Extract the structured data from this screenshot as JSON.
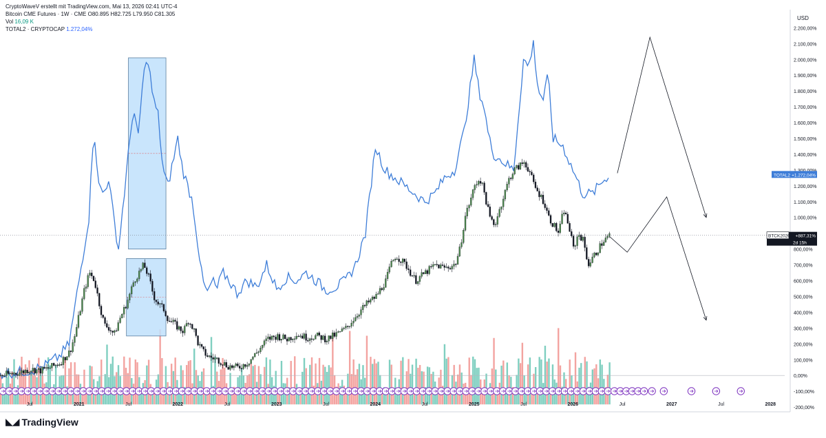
{
  "header": {
    "publisher": "CryptoWaveV erstellt mit TradingView.com, Mai 13, 2026 02:41 UTC-4",
    "symbol": "Bitcoin CME Futures · 1W · CME",
    "ohlc": "O80.895  H82.725  L79.950  C81.305",
    "vol_label": "Vol",
    "vol_value": "16,09 K",
    "compare_label": "TOTAL2 · CRYPTOCAP",
    "compare_value": "1.272,04%"
  },
  "footer": {
    "brand": "TradingView"
  },
  "colors": {
    "total2": "#3d7dd8",
    "candle_up": "#4d8a4d",
    "candle_down": "#131722",
    "vol_up": "#7fcfc0",
    "vol_down": "#f3a3a0",
    "box_fill": "#bfe0fb",
    "box_stroke": "#5a7fa0"
  },
  "chart_data": {
    "type": "line",
    "y_axis_unit": "USD",
    "ylim": [
      -230,
      2280
    ],
    "y_ticks": [
      2200,
      2100,
      2000,
      1900,
      1800,
      1700,
      1600,
      1500,
      1400,
      1300,
      1200,
      1100,
      1000,
      800,
      700,
      600,
      500,
      400,
      300,
      200,
      100,
      0,
      -100,
      -200
    ],
    "y_tick_labels": [
      "2.200,00%",
      "2.100,00%",
      "2.000,00%",
      "1.900,00%",
      "1.800,00%",
      "1.700,00%",
      "1.600,00%",
      "1.500,00%",
      "1.400,00%",
      "1.300,00%",
      "1.200,00%",
      "1.100,00%",
      "1.000,00%",
      "800,00%",
      "700,00%",
      "600,00%",
      "500,00%",
      "400,00%",
      "300,00%",
      "200,00%",
      "100,00%",
      "0,00%",
      "-100,00%",
      "-200,00%"
    ],
    "xlim": [
      2020.2,
      2028.2
    ],
    "x_ticks": [
      {
        "t": 2020.5,
        "label": "Jul"
      },
      {
        "t": 2021.0,
        "label": "2021"
      },
      {
        "t": 2021.5,
        "label": "Jul"
      },
      {
        "t": 2022.0,
        "label": "2022"
      },
      {
        "t": 2022.5,
        "label": "Jul"
      },
      {
        "t": 2023.0,
        "label": "2023"
      },
      {
        "t": 2023.5,
        "label": "Jul"
      },
      {
        "t": 2024.0,
        "label": "2024"
      },
      {
        "t": 2024.5,
        "label": "Jul"
      },
      {
        "t": 2025.0,
        "label": "2025"
      },
      {
        "t": 2025.5,
        "label": "Jul"
      },
      {
        "t": 2026.0,
        "label": "2026"
      },
      {
        "t": 2026.5,
        "label": "Jul"
      },
      {
        "t": 2027.0,
        "label": "2027"
      },
      {
        "t": 2027.5,
        "label": "Jul"
      },
      {
        "t": 2028.0,
        "label": "2028"
      }
    ],
    "series": [
      {
        "name": "TOTAL2 · CRYPTOCAP",
        "kind": "line",
        "x": [
          2020.2,
          2020.35,
          2020.5,
          2020.65,
          2020.8,
          2020.9,
          2021.0,
          2021.05,
          2021.1,
          2021.15,
          2021.2,
          2021.25,
          2021.3,
          2021.35,
          2021.4,
          2021.45,
          2021.5,
          2021.55,
          2021.6,
          2021.65,
          2021.7,
          2021.75,
          2021.8,
          2021.85,
          2021.9,
          2021.95,
          2022.0,
          2022.05,
          2022.1,
          2022.15,
          2022.2,
          2022.25,
          2022.3,
          2022.35,
          2022.4,
          2022.45,
          2022.5,
          2022.6,
          2022.7,
          2022.8,
          2022.9,
          2023.0,
          2023.1,
          2023.2,
          2023.3,
          2023.4,
          2023.5,
          2023.6,
          2023.7,
          2023.8,
          2023.9,
          2024.0,
          2024.1,
          2024.2,
          2024.3,
          2024.4,
          2024.5,
          2024.6,
          2024.7,
          2024.8,
          2024.9,
          2025.0,
          2025.05,
          2025.1,
          2025.15,
          2025.2,
          2025.3,
          2025.4,
          2025.5,
          2025.55,
          2025.6,
          2025.65,
          2025.7,
          2025.75,
          2025.8,
          2025.9,
          2026.0,
          2026.1,
          2026.2,
          2026.3,
          2026.37
        ],
        "values": [
          10,
          20,
          30,
          60,
          120,
          200,
          600,
          800,
          1000,
          1580,
          1200,
          1150,
          1250,
          1000,
          800,
          1100,
          1400,
          1700,
          1500,
          1900,
          2000,
          1750,
          1650,
          1300,
          1200,
          1350,
          1500,
          1300,
          1200,
          1100,
          850,
          600,
          520,
          600,
          550,
          650,
          620,
          520,
          600,
          560,
          700,
          550,
          620,
          600,
          650,
          600,
          540,
          560,
          600,
          700,
          900,
          1450,
          1300,
          1250,
          1200,
          1150,
          1100,
          1150,
          1250,
          1300,
          1550,
          2000,
          1800,
          1700,
          1500,
          1400,
          1350,
          1300,
          2000,
          1950,
          2100,
          1800,
          1750,
          1900,
          1500,
          1450,
          1300,
          1150,
          1150,
          1230,
          1272
        ]
      },
      {
        "name": "Bitcoin CME Futures",
        "kind": "candles",
        "x": [
          2020.2,
          2020.3,
          2020.4,
          2020.5,
          2020.6,
          2020.7,
          2020.8,
          2020.9,
          2020.95,
          2021.0,
          2021.05,
          2021.1,
          2021.15,
          2021.2,
          2021.25,
          2021.3,
          2021.35,
          2021.4,
          2021.45,
          2021.5,
          2021.55,
          2021.6,
          2021.65,
          2021.7,
          2021.75,
          2021.8,
          2021.85,
          2021.9,
          2021.95,
          2022.0,
          2022.05,
          2022.1,
          2022.15,
          2022.2,
          2022.25,
          2022.3,
          2022.35,
          2022.4,
          2022.45,
          2022.5,
          2022.6,
          2022.7,
          2022.8,
          2022.9,
          2023.0,
          2023.1,
          2023.2,
          2023.3,
          2023.4,
          2023.5,
          2023.6,
          2023.7,
          2023.8,
          2023.9,
          2024.0,
          2024.1,
          2024.15,
          2024.2,
          2024.3,
          2024.4,
          2024.5,
          2024.6,
          2024.7,
          2024.8,
          2024.85,
          2024.9,
          2025.0,
          2025.05,
          2025.1,
          2025.15,
          2025.2,
          2025.25,
          2025.3,
          2025.35,
          2025.4,
          2025.5,
          2025.55,
          2025.6,
          2025.65,
          2025.7,
          2025.75,
          2025.8,
          2025.85,
          2025.9,
          2025.95,
          2026.0,
          2026.05,
          2026.1,
          2026.15,
          2026.2,
          2026.25,
          2026.3,
          2026.37
        ],
        "values": [
          0,
          10,
          20,
          40,
          30,
          50,
          80,
          150,
          250,
          400,
          550,
          650,
          600,
          450,
          320,
          300,
          260,
          350,
          420,
          500,
          600,
          650,
          700,
          620,
          500,
          450,
          420,
          350,
          330,
          300,
          280,
          350,
          300,
          200,
          150,
          120,
          110,
          100,
          80,
          60,
          50,
          80,
          150,
          230,
          250,
          230,
          260,
          240,
          250,
          230,
          260,
          300,
          380,
          450,
          500,
          600,
          700,
          760,
          700,
          600,
          650,
          700,
          680,
          700,
          800,
          1000,
          1200,
          1250,
          1150,
          1000,
          950,
          1050,
          1150,
          1250,
          1300,
          1350,
          1300,
          1200,
          1150,
          1100,
          1000,
          950,
          900,
          1050,
          950,
          800,
          900,
          850,
          700,
          750,
          800,
          850,
          887
        ]
      },
      {
        "name": "Vol",
        "kind": "bars"
      }
    ],
    "annotations": [
      {
        "type": "box",
        "x0": 2021.5,
        "x1": 2021.88,
        "y0": 800,
        "y1": 2010
      },
      {
        "type": "box",
        "x0": 2021.48,
        "x1": 2021.88,
        "y0": 250,
        "y1": 740
      },
      {
        "type": "polyline",
        "x": [
          2026.45,
          2026.78,
          2027.35
        ],
        "y": [
          1280,
          2140,
          1000
        ]
      },
      {
        "type": "polyline",
        "x": [
          2026.37,
          2026.55,
          2026.95,
          2027.35
        ],
        "y": [
          880,
          780,
          1130,
          350
        ]
      },
      {
        "type": "hline",
        "y": 887
      }
    ],
    "price_labels": [
      {
        "name": "TOTAL2",
        "text": "TOTAL2",
        "value_text": "+1.272,04%",
        "y": 1272
      },
      {
        "name": "BTCK2026",
        "text": "BTCK2026",
        "value_text": "+887,31%",
        "sub_text": "2d 15h",
        "y": 887
      }
    ],
    "grid": false
  }
}
